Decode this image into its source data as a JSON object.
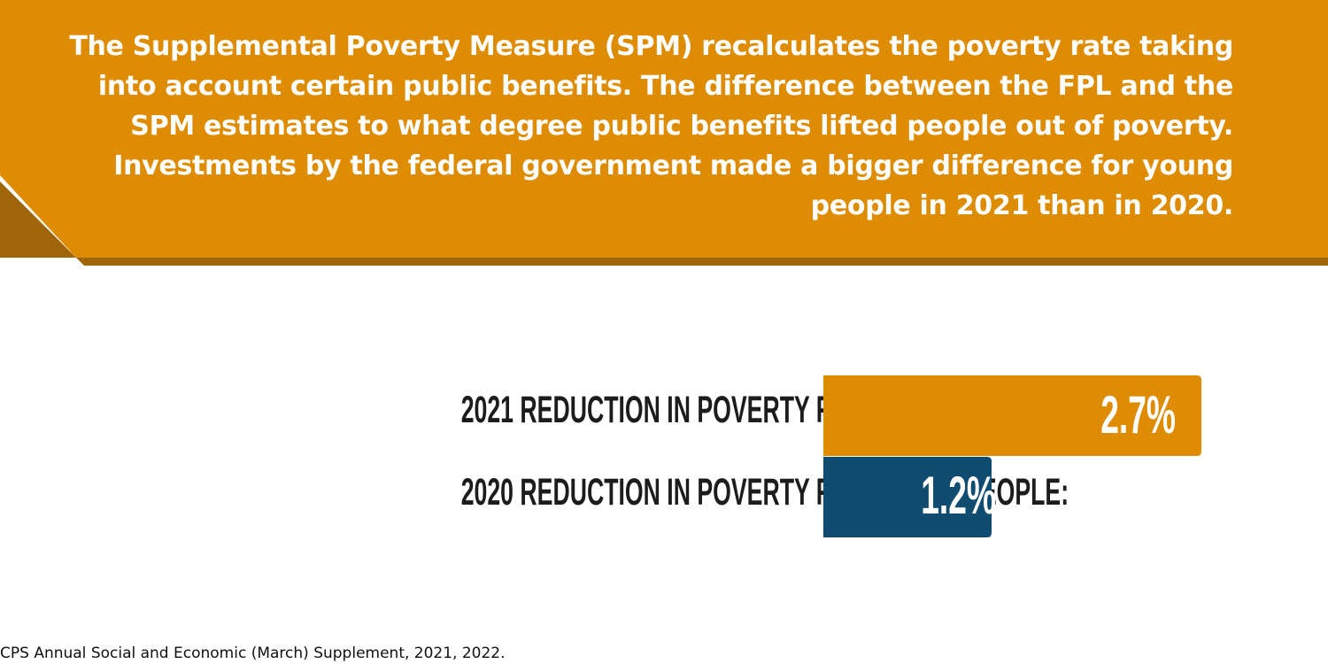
{
  "banner": {
    "text": "The Supplemental Poverty Measure (SPM) recalculates the poverty rate taking into account certain public benefits. The difference between the FPL and the SPM estimates to what degree public benefits lifted people out of poverty. Investments by the federal government made a bigger difference for young people in 2021 than in 2020.",
    "color": "#df8c05",
    "shadow_color": "#a06508"
  },
  "chart_data": {
    "type": "bar",
    "orientation": "horizontal",
    "categories": [
      "2021 REDUCTION IN POVERTY FOR YOUNG PEOPLE:",
      "2020 REDUCTION IN POVERTY FOR YOUNG PEOPLE:"
    ],
    "values": [
      2.7,
      1.2
    ],
    "value_labels": [
      "2.7%",
      "1.2%"
    ],
    "colors": [
      "#df8c05",
      "#0f4c70"
    ],
    "xlim": [
      0,
      2.7
    ],
    "grid": false,
    "title": "",
    "xlabel": "",
    "ylabel": ""
  },
  "source": "CPS Annual Social and Economic (March) Supplement, 2021, 2022."
}
